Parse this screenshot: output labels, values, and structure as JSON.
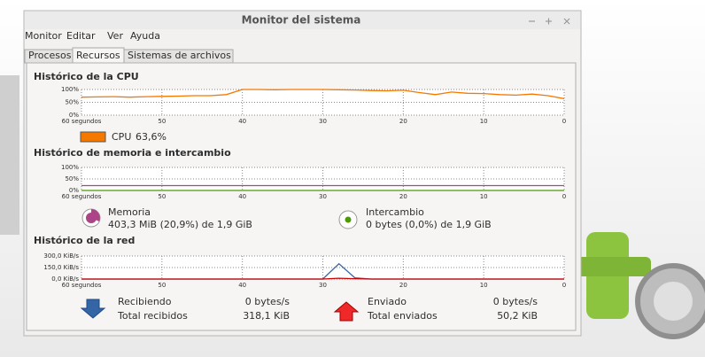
{
  "window": {
    "title": "Monitor del sistema"
  },
  "menu": [
    "Monitor",
    "Editar",
    "Ver",
    "Ayuda"
  ],
  "tabs": [
    "Procesos",
    "Recursos",
    "Sistemas de archivos"
  ],
  "cpu": {
    "heading": "Histórico de la CPU",
    "ylim": [
      0,
      100
    ],
    "yticks": [
      {
        "value": 100,
        "label": "100%"
      },
      {
        "value": 50,
        "label": "50%"
      },
      {
        "value": 0,
        "label": "0%"
      }
    ],
    "xlim": [
      60,
      0
    ],
    "xticks": [
      {
        "value": 60,
        "label": "60 segundos"
      },
      50,
      40,
      30,
      20,
      10,
      0
    ],
    "x": [
      60,
      58,
      56,
      54,
      52,
      50,
      48,
      46,
      44,
      42,
      40,
      38,
      36,
      34,
      32,
      30,
      28,
      26,
      24,
      22,
      20,
      18,
      16,
      14,
      12,
      10,
      8,
      6,
      4,
      2,
      0
    ],
    "series": [
      {
        "name": "CPU",
        "color": "#f57900",
        "values": [
          70,
          71,
          72,
          70,
          72,
          73,
          74,
          76,
          76,
          80,
          100,
          100,
          99,
          100,
          100,
          100,
          99,
          98,
          96,
          95,
          97,
          88,
          80,
          90,
          85,
          84,
          80,
          78,
          82,
          76,
          64
        ]
      }
    ],
    "legend_value": "63,6%"
  },
  "memory": {
    "heading": "Histórico de memoria e intercambio",
    "ylim": [
      0,
      100
    ],
    "yticks": [
      {
        "value": 100,
        "label": "100%"
      },
      {
        "value": 50,
        "label": "50%"
      },
      {
        "value": 0,
        "label": "0%"
      }
    ],
    "xlim": [
      60,
      0
    ],
    "xticks": [
      {
        "value": 60,
        "label": "60 segundos"
      },
      50,
      40,
      30,
      20,
      10,
      0
    ],
    "x": [
      60,
      58,
      56,
      54,
      52,
      50,
      48,
      46,
      44,
      42,
      40,
      38,
      36,
      34,
      32,
      30,
      28,
      26,
      24,
      22,
      20,
      18,
      16,
      14,
      12,
      10,
      8,
      6,
      4,
      2,
      0
    ],
    "series": [
      {
        "name": "Memoria",
        "color": "#ad4488",
        "values": [
          21,
          21,
          21,
          21,
          21,
          21,
          21,
          21,
          21,
          21,
          21,
          21,
          21,
          21,
          21,
          21,
          21,
          21,
          21,
          21,
          21,
          21,
          21,
          21,
          21,
          21,
          21,
          21,
          21,
          21,
          21
        ]
      },
      {
        "name": "Intercambio",
        "color": "#4e9a06",
        "values": [
          0,
          0,
          0,
          0,
          0,
          0,
          0,
          0,
          0,
          0,
          0,
          0,
          0,
          0,
          0,
          0,
          0,
          0,
          0,
          0,
          0,
          0,
          0,
          0,
          0,
          0,
          0,
          0,
          0,
          0,
          0
        ]
      }
    ],
    "memory_detail": "403,3 MiB (20,9%) de 1,9 GiB",
    "swap_detail": "0 bytes (0,0%) de 1,9 GiB"
  },
  "network": {
    "heading": "Histórico de la red",
    "ylim": [
      0,
      300
    ],
    "yticks": [
      {
        "value": 300,
        "label": "300,0 KiB/s"
      },
      {
        "value": 150,
        "label": "150,0 KiB/s"
      },
      {
        "value": 0,
        "label": "0,0 KiB/s"
      }
    ],
    "xlim": [
      60,
      0
    ],
    "xticks": [
      {
        "value": 60,
        "label": "60 segundos"
      },
      50,
      40,
      30,
      20,
      10,
      0
    ],
    "x": [
      60,
      58,
      56,
      54,
      52,
      50,
      48,
      46,
      44,
      42,
      40,
      38,
      36,
      34,
      32,
      30,
      28,
      26,
      24,
      22,
      20,
      18,
      16,
      14,
      12,
      10,
      8,
      6,
      4,
      2,
      0
    ],
    "series": [
      {
        "name": "Recibiendo",
        "color": "#3465a4",
        "values": [
          0,
          0,
          0,
          0,
          0,
          0,
          0,
          0,
          0,
          0,
          0,
          0,
          0,
          0,
          0,
          0,
          200,
          15,
          0,
          0,
          0,
          0,
          0,
          0,
          0,
          0,
          0,
          0,
          0,
          0,
          0
        ]
      },
      {
        "name": "Enviado",
        "color": "#cc0000",
        "values": [
          0,
          0,
          0,
          0,
          0,
          0,
          0,
          0,
          0,
          0,
          0,
          0,
          0,
          0,
          0,
          0,
          10,
          5,
          0,
          0,
          0,
          0,
          0,
          0,
          0,
          0,
          0,
          0,
          0,
          0,
          0
        ]
      }
    ],
    "received_rate": "0 bytes/s",
    "received_total_label": "Total recibidos",
    "received_total": "318,1 KiB",
    "sent_rate": "0 bytes/s",
    "sent_total_label": "Total enviados",
    "sent_total": "50,2 KiB"
  }
}
